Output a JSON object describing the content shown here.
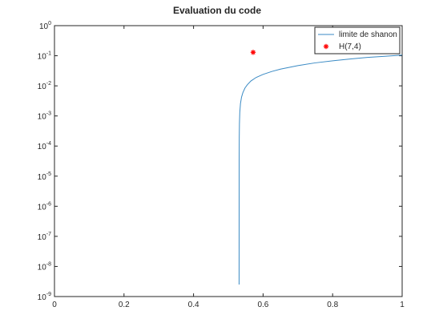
{
  "chart_data": {
    "type": "line",
    "title": "Evaluation du code",
    "xlabel": "",
    "ylabel": "",
    "xlim": [
      0,
      1
    ],
    "ylim": [
      1e-09,
      1
    ],
    "yscale": "log",
    "grid": false,
    "legend_position": "top-right",
    "x_ticks": [
      "0",
      "0.2",
      "0.4",
      "0.6",
      "0.8",
      "1"
    ],
    "x_tick_values": [
      0,
      0.2,
      0.4,
      0.6,
      0.8,
      1
    ],
    "y_tick_base": "10",
    "y_tick_exponents": [
      "-9",
      "-8",
      "-7",
      "-6",
      "-5",
      "-4",
      "-3",
      "-2",
      "-1",
      "0"
    ],
    "series": [
      {
        "name": "limite de shanon",
        "type": "line",
        "color": "#3a8ac4",
        "x": [
          0.531,
          0.5312,
          0.5315,
          0.532,
          0.533,
          0.535,
          0.538,
          0.542,
          0.548,
          0.555,
          0.565,
          0.58,
          0.6,
          0.625,
          0.65,
          0.7,
          0.75,
          0.8,
          0.85,
          0.9,
          0.95,
          1.0
        ],
        "y": [
          2.5e-09,
          3.5e-05,
          0.0002,
          0.00055,
          0.0013,
          0.0026,
          0.0042,
          0.006,
          0.0085,
          0.011,
          0.0145,
          0.019,
          0.024,
          0.03,
          0.036,
          0.047,
          0.058,
          0.068,
          0.078,
          0.088,
          0.096,
          0.105
        ]
      },
      {
        "name": "H(7,4)",
        "type": "scatter",
        "marker": "asterisk",
        "color": "#ff0000",
        "x": [
          0.5714
        ],
        "y": [
          0.13
        ]
      }
    ]
  }
}
